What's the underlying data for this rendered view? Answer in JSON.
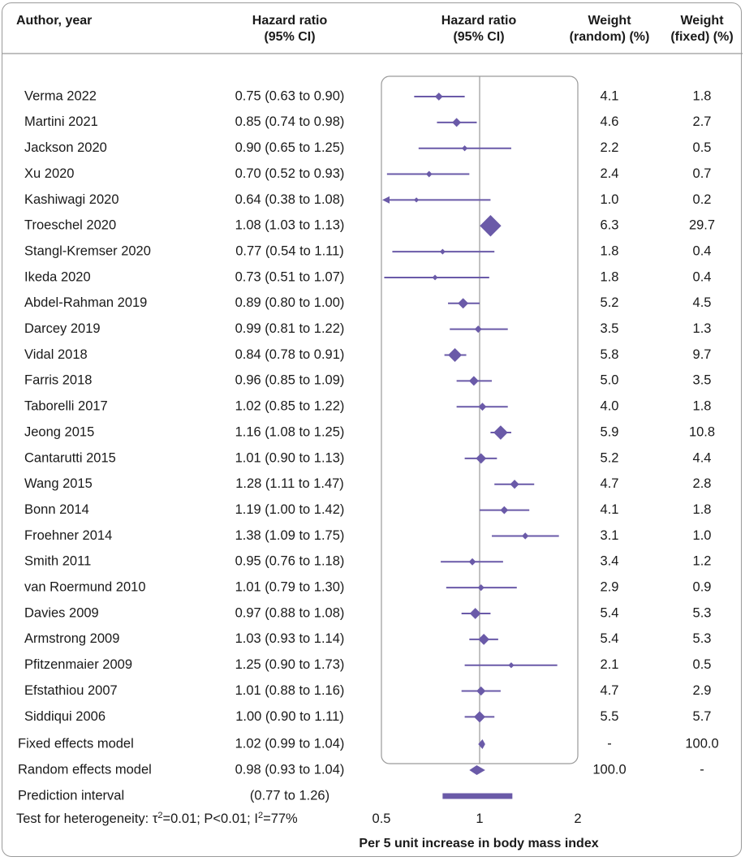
{
  "columns": {
    "author": "Author, year",
    "hr_line1": "Hazard ratio",
    "hr_line2": "(95% CI)",
    "plot_line1": "Hazard ratio",
    "plot_line2": "(95% CI)",
    "wr_line1": "Weight",
    "wr_line2": "(random) (%)",
    "wf_line1": "Weight",
    "wf_line2": "(fixed) (%)"
  },
  "chart_data": {
    "type": "forest",
    "xscale": "log",
    "xlim": [
      0.5,
      2
    ],
    "xticks": [
      0.5,
      1,
      2
    ],
    "xtick_labels": [
      "0.5",
      "1",
      "2"
    ],
    "xlabel": "Per 5 unit increase in body mass index",
    "reference_line": 1,
    "colors": {
      "marker": "#6a5aa8",
      "frame": "#9a9a9a",
      "reference": "#9a9a9a"
    },
    "studies": [
      {
        "author": "Verma 2022",
        "hr": 0.75,
        "lo": 0.63,
        "hi": 0.9,
        "ci_text": "0.75 (0.63 to 0.90)",
        "w_random": "4.1",
        "w_fixed": "1.8",
        "fixed_weight": 1.8
      },
      {
        "author": "Martini 2021",
        "hr": 0.85,
        "lo": 0.74,
        "hi": 0.98,
        "ci_text": "0.85 (0.74 to 0.98)",
        "w_random": "4.6",
        "w_fixed": "2.7",
        "fixed_weight": 2.7
      },
      {
        "author": "Jackson 2020",
        "hr": 0.9,
        "lo": 0.65,
        "hi": 1.25,
        "ci_text": "0.90 (0.65 to 1.25)",
        "w_random": "2.2",
        "w_fixed": "0.5",
        "fixed_weight": 0.5
      },
      {
        "author": "Xu 2020",
        "hr": 0.7,
        "lo": 0.52,
        "hi": 0.93,
        "ci_text": "0.70 (0.52 to 0.93)",
        "w_random": "2.4",
        "w_fixed": "0.7",
        "fixed_weight": 0.7
      },
      {
        "author": "Kashiwagi 2020",
        "hr": 0.64,
        "lo": 0.38,
        "hi": 1.08,
        "ci_text": "0.64 (0.38 to 1.08)",
        "w_random": "1.0",
        "w_fixed": "0.2",
        "fixed_weight": 0.2
      },
      {
        "author": "Troeschel 2020",
        "hr": 1.08,
        "lo": 1.03,
        "hi": 1.13,
        "ci_text": "1.08 (1.03 to 1.13)",
        "w_random": "6.3",
        "w_fixed": "29.7",
        "fixed_weight": 29.7
      },
      {
        "author": "Stangl-Kremser 2020",
        "hr": 0.77,
        "lo": 0.54,
        "hi": 1.11,
        "ci_text": "0.77 (0.54 to 1.11)",
        "w_random": "1.8",
        "w_fixed": "0.4",
        "fixed_weight": 0.4
      },
      {
        "author": "Ikeda 2020",
        "hr": 0.73,
        "lo": 0.51,
        "hi": 1.07,
        "ci_text": "0.73 (0.51 to 1.07)",
        "w_random": "1.8",
        "w_fixed": "0.4",
        "fixed_weight": 0.4
      },
      {
        "author": "Abdel-Rahman 2019",
        "hr": 0.89,
        "lo": 0.8,
        "hi": 1.0,
        "ci_text": "0.89 (0.80 to 1.00)",
        "w_random": "5.2",
        "w_fixed": "4.5",
        "fixed_weight": 4.5
      },
      {
        "author": "Darcey 2019",
        "hr": 0.99,
        "lo": 0.81,
        "hi": 1.22,
        "ci_text": "0.99 (0.81 to 1.22)",
        "w_random": "3.5",
        "w_fixed": "1.3",
        "fixed_weight": 1.3
      },
      {
        "author": "Vidal 2018",
        "hr": 0.84,
        "lo": 0.78,
        "hi": 0.91,
        "ci_text": "0.84 (0.78 to 0.91)",
        "w_random": "5.8",
        "w_fixed": "9.7",
        "fixed_weight": 9.7
      },
      {
        "author": "Farris 2018",
        "hr": 0.96,
        "lo": 0.85,
        "hi": 1.09,
        "ci_text": "0.96 (0.85 to 1.09)",
        "w_random": "5.0",
        "w_fixed": "3.5",
        "fixed_weight": 3.5
      },
      {
        "author": "Taborelli 2017",
        "hr": 1.02,
        "lo": 0.85,
        "hi": 1.22,
        "ci_text": "1.02 (0.85 to 1.22)",
        "w_random": "4.0",
        "w_fixed": "1.8",
        "fixed_weight": 1.8
      },
      {
        "author": "Jeong 2015",
        "hr": 1.16,
        "lo": 1.08,
        "hi": 1.25,
        "ci_text": "1.16 (1.08 to 1.25)",
        "w_random": "5.9",
        "w_fixed": "10.8",
        "fixed_weight": 10.8
      },
      {
        "author": "Cantarutti 2015",
        "hr": 1.01,
        "lo": 0.9,
        "hi": 1.13,
        "ci_text": "1.01 (0.90 to 1.13)",
        "w_random": "5.2",
        "w_fixed": "4.4",
        "fixed_weight": 4.4
      },
      {
        "author": "Wang 2015",
        "hr": 1.28,
        "lo": 1.11,
        "hi": 1.47,
        "ci_text": "1.28 (1.11 to 1.47)",
        "w_random": "4.7",
        "w_fixed": "2.8",
        "fixed_weight": 2.8
      },
      {
        "author": "Bonn 2014",
        "hr": 1.19,
        "lo": 1.0,
        "hi": 1.42,
        "ci_text": "1.19 (1.00 to 1.42)",
        "w_random": "4.1",
        "w_fixed": "1.8",
        "fixed_weight": 1.8
      },
      {
        "author": "Froehner 2014",
        "hr": 1.38,
        "lo": 1.09,
        "hi": 1.75,
        "ci_text": "1.38 (1.09 to 1.75)",
        "w_random": "3.1",
        "w_fixed": "1.0",
        "fixed_weight": 1.0
      },
      {
        "author": "Smith 2011",
        "hr": 0.95,
        "lo": 0.76,
        "hi": 1.18,
        "ci_text": "0.95 (0.76 to 1.18)",
        "w_random": "3.4",
        "w_fixed": "1.2",
        "fixed_weight": 1.2
      },
      {
        "author": "van Roermund 2010",
        "hr": 1.01,
        "lo": 0.79,
        "hi": 1.3,
        "ci_text": "1.01 (0.79 to 1.30)",
        "w_random": "2.9",
        "w_fixed": "0.9",
        "fixed_weight": 0.9
      },
      {
        "author": "Davies 2009",
        "hr": 0.97,
        "lo": 0.88,
        "hi": 1.08,
        "ci_text": "0.97 (0.88 to 1.08)",
        "w_random": "5.4",
        "w_fixed": "5.3",
        "fixed_weight": 5.3
      },
      {
        "author": "Armstrong 2009",
        "hr": 1.03,
        "lo": 0.93,
        "hi": 1.14,
        "ci_text": "1.03 (0.93 to 1.14)",
        "w_random": "5.4",
        "w_fixed": "5.3",
        "fixed_weight": 5.3
      },
      {
        "author": "Pfitzenmaier 2009",
        "hr": 1.25,
        "lo": 0.9,
        "hi": 1.73,
        "ci_text": "1.25 (0.90 to 1.73)",
        "w_random": "2.1",
        "w_fixed": "0.5",
        "fixed_weight": 0.5
      },
      {
        "author": "Efstathiou 2007",
        "hr": 1.01,
        "lo": 0.88,
        "hi": 1.16,
        "ci_text": "1.01 (0.88 to 1.16)",
        "w_random": "4.7",
        "w_fixed": "2.9",
        "fixed_weight": 2.9
      },
      {
        "author": "Siddiqui 2006",
        "hr": 1.0,
        "lo": 0.9,
        "hi": 1.11,
        "ci_text": "1.00 (0.90 to 1.11)",
        "w_random": "5.5",
        "w_fixed": "5.7",
        "fixed_weight": 5.7
      }
    ],
    "summaries": [
      {
        "label": "Fixed effects model",
        "hr": 1.02,
        "lo": 0.99,
        "hi": 1.04,
        "ci_text": "1.02 (0.99 to 1.04)",
        "w_random": "-",
        "w_fixed": "100.0",
        "kind": "diamond"
      },
      {
        "label": "Random effects model",
        "hr": 0.98,
        "lo": 0.93,
        "hi": 1.04,
        "ci_text": "0.98 (0.93 to 1.04)",
        "w_random": "100.0",
        "w_fixed": "-",
        "kind": "diamond"
      },
      {
        "label": "Prediction interval",
        "lo": 0.77,
        "hi": 1.26,
        "ci_text": "(0.77 to 1.26)",
        "w_random": "",
        "w_fixed": "",
        "kind": "bar"
      }
    ],
    "heterogeneity": {
      "prefix": "Test for heterogeneity: τ",
      "tau_sup": "2",
      "middle": "=0.01; P<0.01; I",
      "i_sup": "2",
      "suffix": "=77%"
    }
  }
}
